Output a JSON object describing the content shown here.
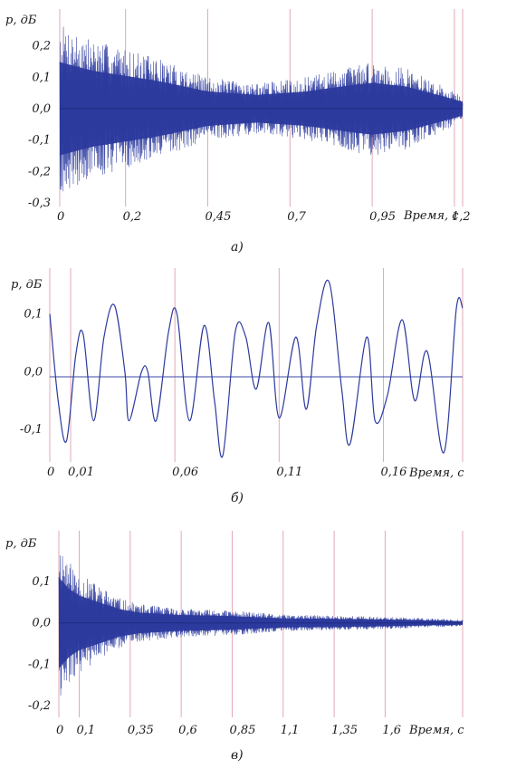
{
  "chart_data": [
    {
      "type": "line",
      "panel_label": "а)",
      "ylabel": "p, дБ",
      "xlabel": "Время, с",
      "x_ticks": [
        "0",
        "0,2",
        "0,45",
        "0,7",
        "0,95",
        "1,2"
      ],
      "y_ticks": [
        "0,2",
        "0,1",
        "0,0",
        "-0,1",
        "-0,2",
        "-0,3"
      ],
      "y_tick_values": [
        0.2,
        0.1,
        0.0,
        -0.1,
        -0.2,
        -0.3
      ],
      "xlim": [
        0,
        1.225
      ],
      "ylim": [
        -0.3,
        0.3
      ],
      "grid": "vertical",
      "series": [
        {
          "envelope": [
            {
              "x": 0.0,
              "y": 0.27
            },
            {
              "x": 0.1,
              "y": 0.22
            },
            {
              "x": 0.2,
              "y": 0.19
            },
            {
              "x": 0.3,
              "y": 0.16
            },
            {
              "x": 0.45,
              "y": 0.1
            },
            {
              "x": 0.6,
              "y": 0.08
            },
            {
              "x": 0.75,
              "y": 0.1
            },
            {
              "x": 0.9,
              "y": 0.14
            },
            {
              "x": 0.95,
              "y": 0.15
            },
            {
              "x": 1.05,
              "y": 0.13
            },
            {
              "x": 1.15,
              "y": 0.08
            },
            {
              "x": 1.225,
              "y": 0.04
            }
          ]
        }
      ]
    },
    {
      "type": "line",
      "panel_label": "б)",
      "ylabel": "p, дБ",
      "xlabel": "Время, с",
      "x_ticks": [
        "0",
        "0,01",
        "0,06",
        "0,11",
        "0,16"
      ],
      "x_tick_values": [
        0,
        0.01,
        0.06,
        0.11,
        0.16
      ],
      "y_ticks": [
        "0,1",
        "0,0",
        "-0,1"
      ],
      "y_tick_values": [
        0.1,
        0.0,
        -0.1
      ],
      "xlim": [
        0,
        0.198
      ],
      "ylim": [
        -0.15,
        0.17
      ],
      "grid": "vertical",
      "series": [
        {
          "points": [
            {
              "x": 0.0,
              "y": 0.1
            },
            {
              "x": 0.004,
              "y": -0.05
            },
            {
              "x": 0.008,
              "y": -0.12
            },
            {
              "x": 0.0125,
              "y": 0.03
            },
            {
              "x": 0.016,
              "y": 0.065
            },
            {
              "x": 0.021,
              "y": -0.085
            },
            {
              "x": 0.026,
              "y": 0.06
            },
            {
              "x": 0.031,
              "y": 0.115
            },
            {
              "x": 0.036,
              "y": 0.0
            },
            {
              "x": 0.038,
              "y": -0.085
            },
            {
              "x": 0.044,
              "y": 0.0
            },
            {
              "x": 0.047,
              "y": 0.0
            },
            {
              "x": 0.051,
              "y": -0.085
            },
            {
              "x": 0.057,
              "y": 0.07
            },
            {
              "x": 0.061,
              "y": 0.1
            },
            {
              "x": 0.067,
              "y": -0.085
            },
            {
              "x": 0.074,
              "y": 0.08
            },
            {
              "x": 0.079,
              "y": -0.05
            },
            {
              "x": 0.083,
              "y": -0.145
            },
            {
              "x": 0.089,
              "y": 0.07
            },
            {
              "x": 0.094,
              "y": 0.06
            },
            {
              "x": 0.099,
              "y": -0.03
            },
            {
              "x": 0.105,
              "y": 0.085
            },
            {
              "x": 0.11,
              "y": -0.08
            },
            {
              "x": 0.118,
              "y": 0.06
            },
            {
              "x": 0.123,
              "y": -0.065
            },
            {
              "x": 0.128,
              "y": 0.08
            },
            {
              "x": 0.134,
              "y": 0.155
            },
            {
              "x": 0.14,
              "y": -0.03
            },
            {
              "x": 0.144,
              "y": -0.125
            },
            {
              "x": 0.152,
              "y": 0.06
            },
            {
              "x": 0.156,
              "y": -0.085
            },
            {
              "x": 0.162,
              "y": -0.04
            },
            {
              "x": 0.169,
              "y": 0.09
            },
            {
              "x": 0.175,
              "y": -0.05
            },
            {
              "x": 0.181,
              "y": 0.035
            },
            {
              "x": 0.189,
              "y": -0.14
            },
            {
              "x": 0.195,
              "y": 0.11
            },
            {
              "x": 0.198,
              "y": 0.11
            }
          ]
        }
      ]
    },
    {
      "type": "line",
      "panel_label": "в)",
      "ylabel": "p, дБ",
      "xlabel": "Время, с",
      "x_ticks": [
        "0",
        "0,1",
        "0,35",
        "0,6",
        "0,85",
        "1,1",
        "1,35",
        "1,6"
      ],
      "x_tick_values": [
        0,
        0.1,
        0.35,
        0.6,
        0.85,
        1.1,
        1.35,
        1.6
      ],
      "y_ticks": [
        "0,1",
        "0,0",
        "-0,1",
        "-0,2"
      ],
      "y_tick_values": [
        0.1,
        0.0,
        -0.1,
        -0.2
      ],
      "xlim": [
        0,
        1.98
      ],
      "ylim": [
        -0.22,
        0.21
      ],
      "grid": "vertical",
      "series": [
        {
          "envelope": [
            {
              "x": 0.0,
              "y": 0.2
            },
            {
              "x": 0.05,
              "y": 0.15
            },
            {
              "x": 0.1,
              "y": 0.12
            },
            {
              "x": 0.2,
              "y": 0.09
            },
            {
              "x": 0.3,
              "y": 0.06
            },
            {
              "x": 0.4,
              "y": 0.045
            },
            {
              "x": 0.6,
              "y": 0.035
            },
            {
              "x": 0.85,
              "y": 0.03
            },
            {
              "x": 1.1,
              "y": 0.02
            },
            {
              "x": 1.35,
              "y": 0.018
            },
            {
              "x": 1.6,
              "y": 0.015
            },
            {
              "x": 1.98,
              "y": 0.008
            }
          ]
        }
      ]
    }
  ]
}
